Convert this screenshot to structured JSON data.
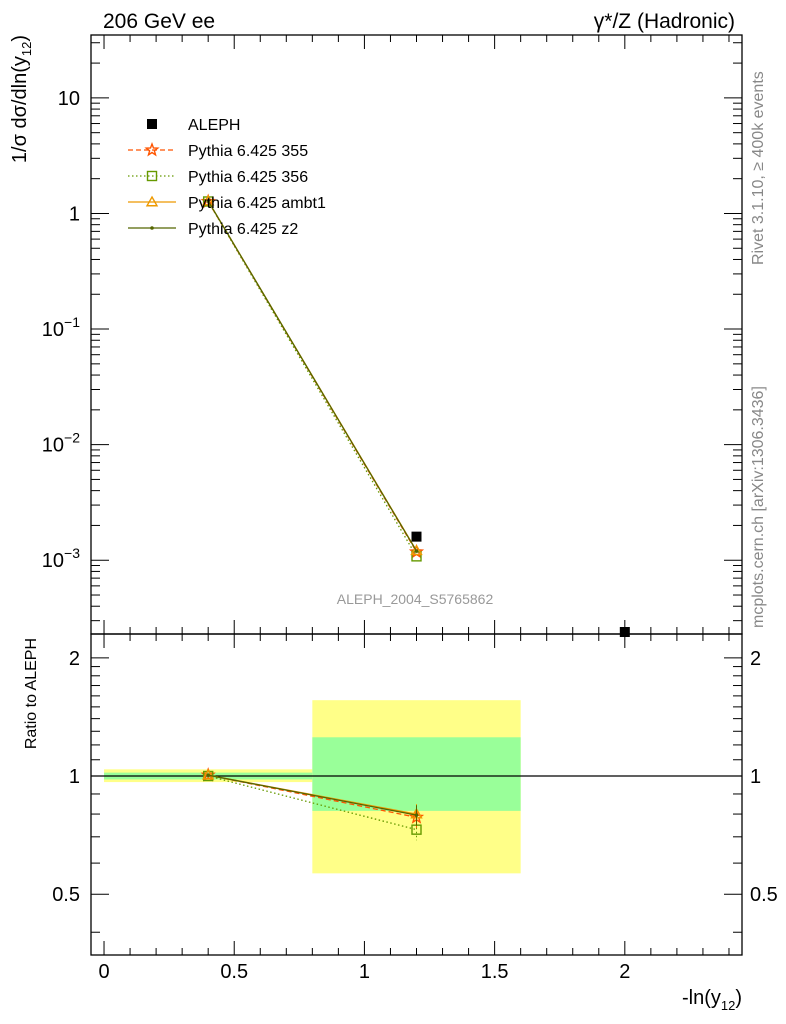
{
  "header": {
    "left": "206 GeV ee",
    "right": "γ*/Z (Hadronic)"
  },
  "side_labels": {
    "rivet": "Rivet 3.1.10, ≥ 400k events",
    "mcplots": "mcplots.cern.ch [arXiv:1306.3436]"
  },
  "analysis_tag": "ALEPH_2004_S5765862",
  "chart_data": [
    {
      "panel": "main",
      "type": "line",
      "ylabel": "1/σ dσ/dln(y12)",
      "xlabel": "-ln(y12)",
      "xlim": [
        -0.05,
        2.45
      ],
      "ylim": [
        0.00023,
        35
      ],
      "yscale": "log",
      "yticklabels": [
        "10^-3",
        "10^-2",
        "10^-1",
        "1",
        "10"
      ],
      "xticklabels": [
        "0",
        "0.5",
        "1",
        "1.5",
        "2"
      ],
      "legend_position": "top-left",
      "series": [
        {
          "name": "ALEPH",
          "color": "#000000",
          "marker": "square",
          "x": [
            1.2,
            2.0
          ],
          "y": [
            0.0016,
            0.00022
          ]
        },
        {
          "name": "Pythia 6.425 355",
          "color": "#ff5500",
          "style": "dashed",
          "marker": "star",
          "x": [
            0.4,
            1.2
          ],
          "y": [
            1.27,
            0.00118
          ]
        },
        {
          "name": "Pythia 6.425 356",
          "color": "#669900",
          "style": "dotted",
          "marker": "open-square",
          "x": [
            0.4,
            1.2
          ],
          "y": [
            1.27,
            0.00108
          ]
        },
        {
          "name": "Pythia 6.425 ambt1",
          "color": "#ee9900",
          "style": "solid",
          "marker": "open-triangle",
          "x": [
            0.4,
            1.2
          ],
          "y": [
            1.28,
            0.00121
          ]
        },
        {
          "name": "Pythia 6.425 z2",
          "color": "#556600",
          "style": "solid",
          "marker": "dot",
          "x": [
            0.4,
            1.2
          ],
          "y": [
            1.28,
            0.0012
          ]
        }
      ]
    },
    {
      "panel": "ratio",
      "type": "line",
      "ylabel": "Ratio to ALEPH",
      "xlabel": "-ln(y12)",
      "xlim": [
        -0.05,
        2.45
      ],
      "ylim": [
        0.35,
        2.3
      ],
      "yscale": "log",
      "yticklabels": [
        "0.5",
        "1",
        "2"
      ],
      "bands": [
        {
          "x": [
            0.0,
            0.8
          ],
          "yellow": [
            0.965,
            1.04
          ],
          "green": [
            0.98,
            1.02
          ]
        },
        {
          "x": [
            0.8,
            1.6
          ],
          "yellow": [
            0.565,
            1.56
          ],
          "green": [
            0.815,
            1.255
          ]
        }
      ],
      "series": [
        {
          "name": "Pythia 6.425 355",
          "x": [
            0.4,
            1.2
          ],
          "y": [
            1.005,
            0.785
          ]
        },
        {
          "name": "Pythia 6.425 356",
          "x": [
            0.4,
            1.2
          ],
          "y": [
            1.0,
            0.73
          ]
        },
        {
          "name": "Pythia 6.425 ambt1",
          "x": [
            0.4,
            1.2
          ],
          "y": [
            1.005,
            0.8
          ]
        },
        {
          "name": "Pythia 6.425 z2",
          "x": [
            0.4,
            1.2
          ],
          "y": [
            1.005,
            0.795
          ]
        }
      ]
    }
  ]
}
